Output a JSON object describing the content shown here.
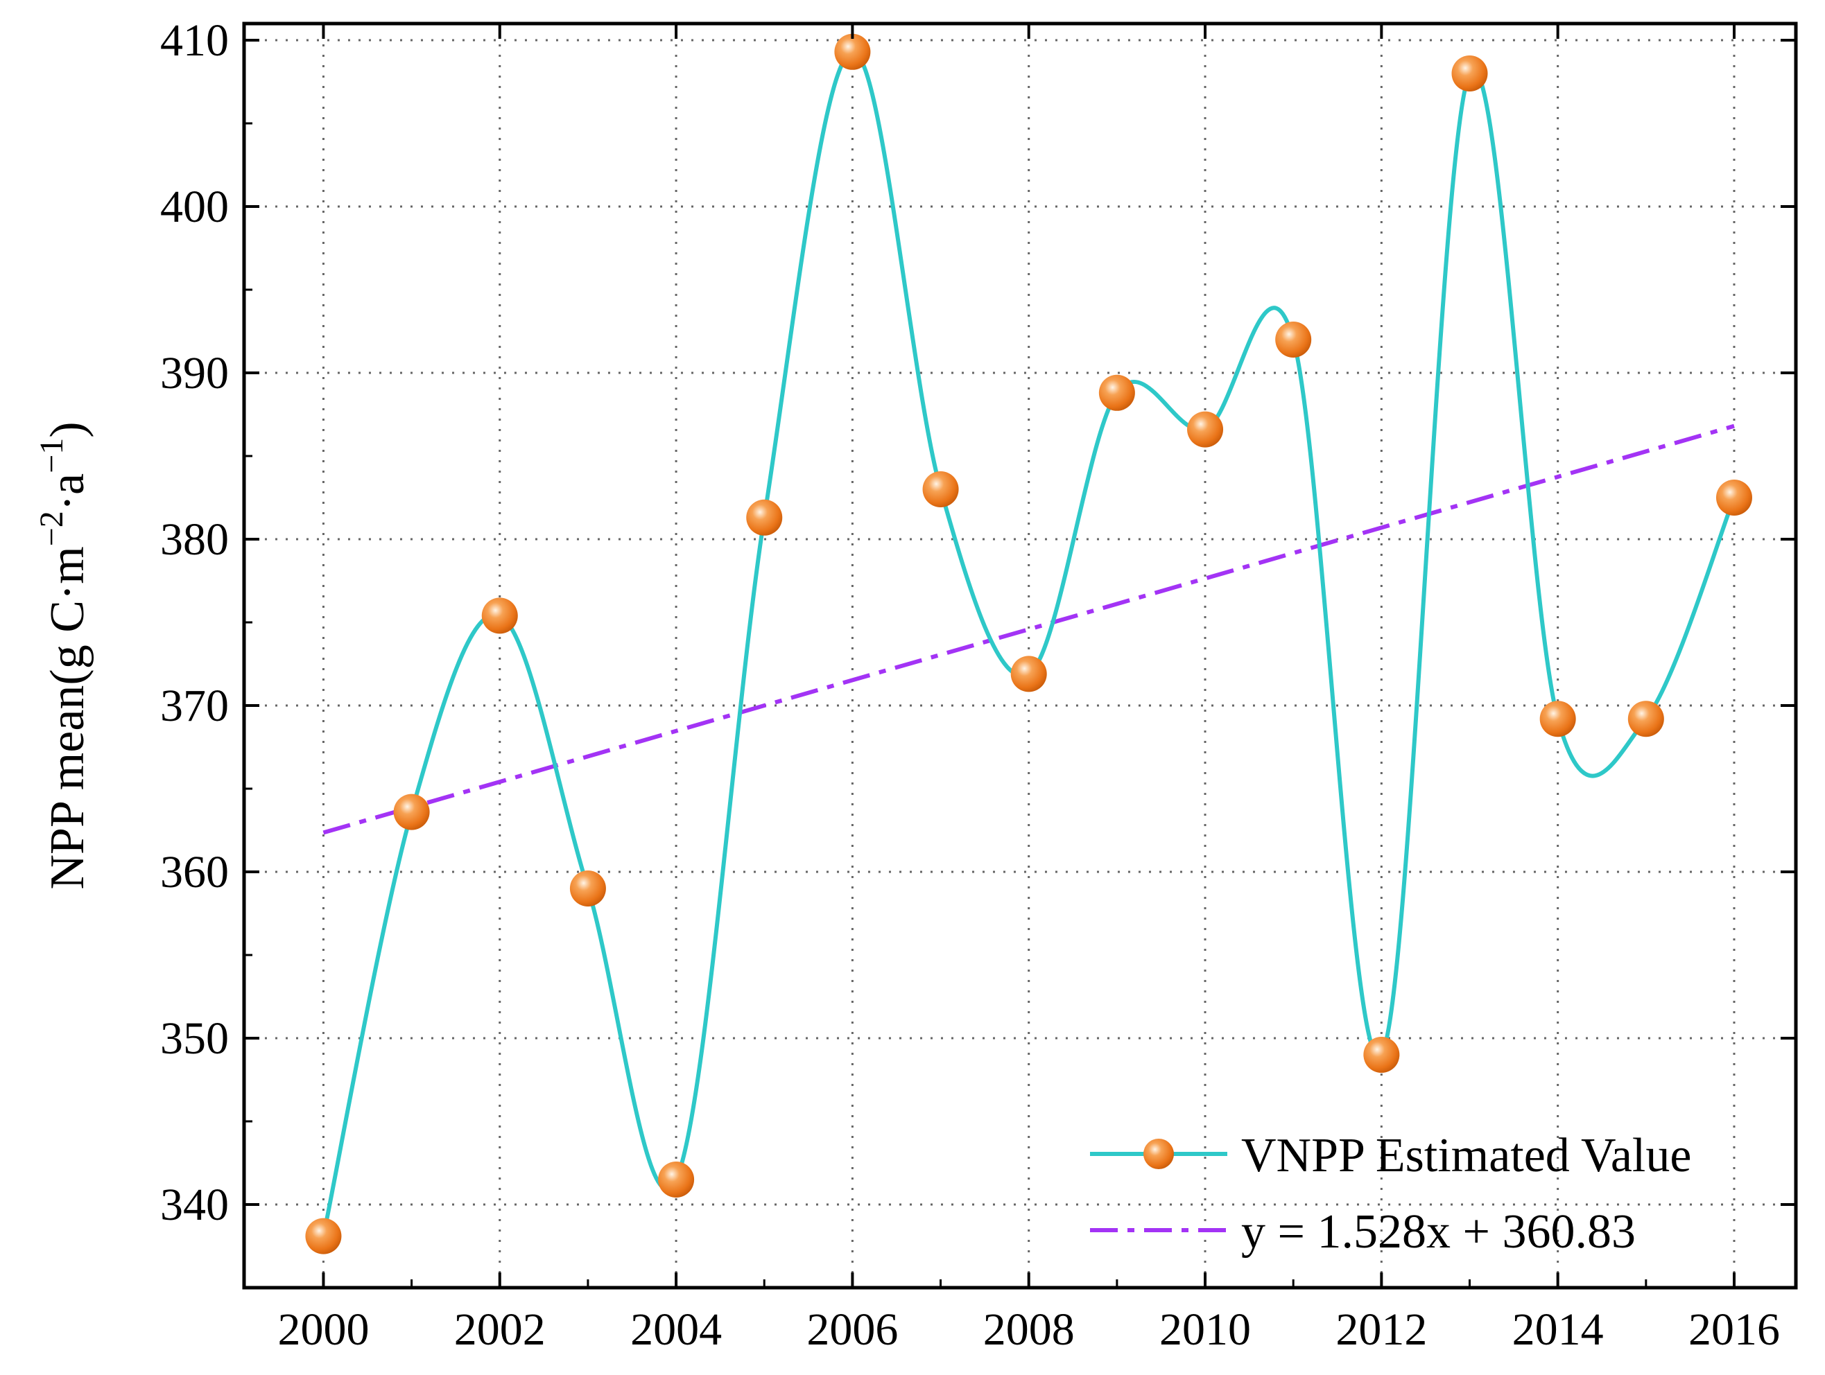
{
  "chart_data": {
    "type": "line",
    "title": "",
    "xlabel": "",
    "ylabel": "NPP mean(g C·m",
    "ylabel_sup1": "−2",
    "ylabel_mid": "·a",
    "ylabel_sup2": "−1",
    "ylabel_end": ")",
    "xlim": [
      1999.1,
      2016.7
    ],
    "ylim": [
      335,
      411
    ],
    "xticks": [
      2000,
      2002,
      2004,
      2006,
      2008,
      2010,
      2012,
      2014,
      2016
    ],
    "xtick_labels": [
      "2000",
      "2002",
      "2004",
      "2006",
      "2008",
      "2010",
      "2012",
      "2014",
      "2016"
    ],
    "yticks": [
      340,
      350,
      360,
      370,
      380,
      390,
      400,
      410
    ],
    "ytick_labels": [
      "340",
      "350",
      "360",
      "370",
      "380",
      "390",
      "400",
      "410"
    ],
    "grid": true,
    "legend_position": "bottom-right",
    "series": [
      {
        "name": "VNPP Estimated Value",
        "line_color": "#2ec8c8",
        "marker_color": "#f07f22",
        "x": [
          2000,
          2001,
          2002,
          2003,
          2004,
          2005,
          2006,
          2007,
          2008,
          2009,
          2010,
          2011,
          2012,
          2013,
          2014,
          2015,
          2016
        ],
        "values": [
          338.1,
          363.6,
          375.4,
          359.0,
          341.5,
          381.3,
          409.3,
          383.0,
          371.9,
          388.8,
          386.6,
          392.0,
          349.0,
          408.0,
          369.2,
          369.2,
          382.5
        ]
      },
      {
        "name": "y = 1.528x + 360.83",
        "type": "trend",
        "line_color": "#a333f5",
        "slope": 1.528,
        "intercept": 360.83,
        "x_start": 2000,
        "x_end": 2016
      }
    ]
  }
}
